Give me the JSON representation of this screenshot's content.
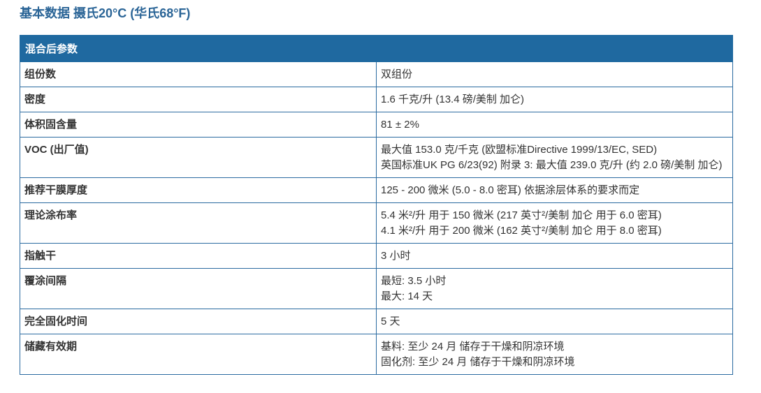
{
  "title": "基本数据 摄氏20°C (华氏68°F)",
  "table": {
    "header": "混合后参数",
    "rows": [
      {
        "label": "组份数",
        "lines": [
          "双组份"
        ]
      },
      {
        "label": "密度",
        "lines": [
          "1.6 千克/升 (13.4 磅/美制 加仑)"
        ]
      },
      {
        "label": "体积固含量",
        "lines": [
          "81 ± 2%"
        ]
      },
      {
        "label": "VOC (出厂值)",
        "lines": [
          "最大值 153.0 克/千克 (欧盟标准Directive 1999/13/EC, SED)",
          "英国标准UK PG 6/23(92) 附录 3: 最大值 239.0 克/升 (约 2.0 磅/美制 加仑)"
        ]
      },
      {
        "label": "推荐干膜厚度",
        "lines": [
          "125 - 200 微米 (5.0 - 8.0 密耳) 依据涂层体系的要求而定"
        ]
      },
      {
        "label": "理论涂布率",
        "lines": [
          "5.4 米²/升 用于 150 微米 (217 英寸²/美制 加仑 用于 6.0 密耳)",
          "4.1 米²/升 用于 200 微米 (162 英寸²/美制 加仑 用于 8.0 密耳)"
        ]
      },
      {
        "label": "指触干",
        "lines": [
          "3 小时"
        ]
      },
      {
        "label": "覆涂间隔",
        "lines": [
          "最短: 3.5 小时",
          "最大: 14 天"
        ]
      },
      {
        "label": "完全固化时间",
        "lines": [
          "5 天"
        ]
      },
      {
        "label": "储藏有效期",
        "lines": [
          "基料: 至少 24 月 储存于干燥和阴凉环境",
          "固化剂: 至少 24 月 储存于干燥和阴凉环境"
        ]
      }
    ]
  },
  "colors": {
    "header_bg": "#1f69a0",
    "title": "#2b6597",
    "border": "#2a6aa0"
  }
}
